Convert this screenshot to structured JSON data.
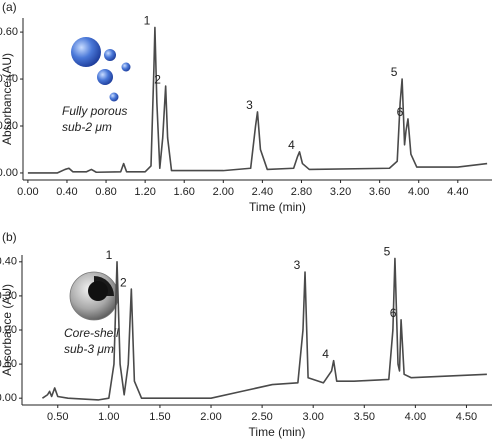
{
  "chart_data": [
    {
      "type": "line",
      "panel": "(a)",
      "xlabel": "Time (min)",
      "ylabel": "Absorbance (AU)",
      "annotation": [
        "Fully porous",
        "sub-2 μm"
      ],
      "xlim": [
        -0.05,
        4.75
      ],
      "ylim": [
        -0.03,
        0.66
      ],
      "xticks": [
        {
          "value": 0,
          "label": "0.00"
        },
        {
          "value": 0.4,
          "label": "0.40"
        },
        {
          "value": 0.8,
          "label": "0.80"
        },
        {
          "value": 1.2,
          "label": "1.20"
        },
        {
          "value": 1.6,
          "label": "1.60"
        },
        {
          "value": 2.0,
          "label": "2.00"
        },
        {
          "value": 2.4,
          "label": "2.40"
        },
        {
          "value": 2.8,
          "label": "2.80"
        },
        {
          "value": 3.2,
          "label": "3.20"
        },
        {
          "value": 3.6,
          "label": "3.60"
        },
        {
          "value": 4.0,
          "label": "4.00"
        },
        {
          "value": 4.4,
          "label": "4.40"
        }
      ],
      "yticks": [
        {
          "value": 0,
          "label": "0.00"
        },
        {
          "value": 0.2,
          "label": "0.20"
        },
        {
          "value": 0.4,
          "label": "0.40"
        },
        {
          "value": 0.6,
          "label": "0.60"
        }
      ],
      "color": "#4a4a4a",
      "x": [
        0.0,
        0.3,
        0.38,
        0.42,
        0.46,
        0.6,
        0.65,
        0.7,
        0.95,
        0.98,
        1.01,
        1.2,
        1.26,
        1.29,
        1.3,
        1.32,
        1.35,
        1.38,
        1.41,
        1.43,
        1.47,
        2.0,
        2.28,
        2.33,
        2.35,
        2.38,
        2.45,
        2.72,
        2.76,
        2.78,
        2.81,
        2.88,
        3.7,
        3.78,
        3.81,
        3.83,
        3.855,
        3.87,
        3.89,
        3.92,
        3.98,
        4.4,
        4.7
      ],
      "values": [
        0.0,
        0.0,
        0.015,
        0.02,
        0.005,
        0.005,
        0.015,
        0.003,
        0.005,
        0.04,
        0.005,
        0.005,
        0.03,
        0.45,
        0.62,
        0.3,
        0.02,
        0.15,
        0.37,
        0.15,
        0.01,
        0.01,
        0.02,
        0.2,
        0.26,
        0.1,
        0.015,
        0.02,
        0.07,
        0.09,
        0.04,
        0.015,
        0.02,
        0.05,
        0.3,
        0.4,
        0.12,
        0.18,
        0.23,
        0.08,
        0.025,
        0.025,
        0.04
      ],
      "peaks": [
        {
          "label": "1",
          "x": 1.3,
          "y": 0.62
        },
        {
          "label": "2",
          "x": 1.41,
          "y": 0.37
        },
        {
          "label": "3",
          "x": 2.35,
          "y": 0.26
        },
        {
          "label": "4",
          "x": 2.78,
          "y": 0.09
        },
        {
          "label": "5",
          "x": 3.83,
          "y": 0.4
        },
        {
          "label": "6",
          "x": 3.89,
          "y": 0.23
        }
      ]
    },
    {
      "type": "line",
      "panel": "(b)",
      "xlabel": "Time (min)",
      "ylabel": "Absorbance (AU)",
      "annotation": [
        "Core-shell",
        "sub-3 μm"
      ],
      "xlim": [
        0.15,
        4.75
      ],
      "ylim": [
        -0.02,
        0.42
      ],
      "xticks": [
        {
          "value": 0.5,
          "label": "0.50"
        },
        {
          "value": 1.0,
          "label": "1.00"
        },
        {
          "value": 1.5,
          "label": "1.50"
        },
        {
          "value": 2.0,
          "label": "2.00"
        },
        {
          "value": 2.5,
          "label": "2.50"
        },
        {
          "value": 3.0,
          "label": "3.00"
        },
        {
          "value": 3.5,
          "label": "3.50"
        },
        {
          "value": 4.0,
          "label": "4.00"
        },
        {
          "value": 4.5,
          "label": "4.50"
        }
      ],
      "yticks": [
        {
          "value": 0,
          "label": "0.00"
        },
        {
          "value": 0.1,
          "label": "0.10"
        },
        {
          "value": 0.2,
          "label": "0.20"
        },
        {
          "value": 0.3,
          "label": "0.30"
        },
        {
          "value": 0.4,
          "label": "0.40"
        }
      ],
      "color": "#4a4a4a",
      "x": [
        0.35,
        0.4,
        0.42,
        0.44,
        0.47,
        0.5,
        0.6,
        0.9,
        1.0,
        1.05,
        1.08,
        1.11,
        1.15,
        1.19,
        1.22,
        1.25,
        1.32,
        2.0,
        2.3,
        2.6,
        2.85,
        2.9,
        2.92,
        2.95,
        3.1,
        3.18,
        3.2,
        3.23,
        3.4,
        3.74,
        3.78,
        3.8,
        3.83,
        3.845,
        3.86,
        3.89,
        3.96,
        4.7
      ],
      "values": [
        0.0,
        0.01,
        0.02,
        0.005,
        0.03,
        0.005,
        0.0,
        -0.005,
        0.0,
        0.1,
        0.4,
        0.1,
        0.01,
        0.1,
        0.32,
        0.05,
        0.0,
        0.0,
        0.02,
        0.04,
        0.045,
        0.2,
        0.37,
        0.06,
        0.045,
        0.08,
        0.11,
        0.05,
        0.05,
        0.055,
        0.2,
        0.41,
        0.1,
        0.08,
        0.23,
        0.07,
        0.06,
        0.07
      ],
      "peaks": [
        {
          "label": "1",
          "x": 1.08,
          "y": 0.4
        },
        {
          "label": "2",
          "x": 1.22,
          "y": 0.32
        },
        {
          "label": "3",
          "x": 2.92,
          "y": 0.37
        },
        {
          "label": "4",
          "x": 3.2,
          "y": 0.11
        },
        {
          "label": "5",
          "x": 3.8,
          "y": 0.41
        },
        {
          "label": "6",
          "x": 3.86,
          "y": 0.23
        }
      ]
    }
  ]
}
